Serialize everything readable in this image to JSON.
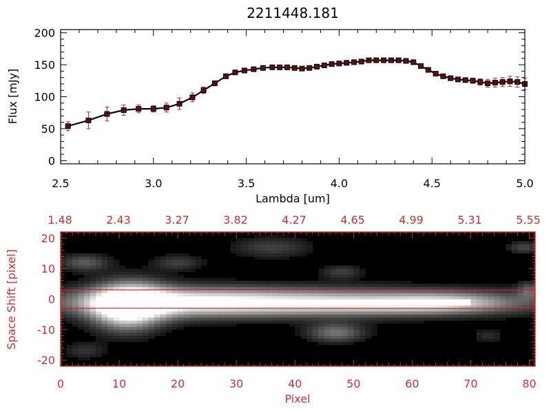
{
  "title": "2211448.181",
  "colors": {
    "spectrum_line": "#000000",
    "marker": "#5a1010",
    "error_bar": "#d02020",
    "bottom_axes": "#d03030",
    "image_background": "#000000"
  },
  "chart_data": [
    {
      "type": "line",
      "title": "2211448.181",
      "xlabel": "Lambda [um]",
      "ylabel": "Flux [mJy]",
      "xlim": [
        2.5,
        5.0
      ],
      "ylim": [
        -5,
        205
      ],
      "xticks": [
        "2.5",
        "3.0",
        "3.5",
        "4.0",
        "4.5",
        "5.0"
      ],
      "yticks": [
        "0",
        "50",
        "100",
        "150",
        "200"
      ],
      "grid": false,
      "series": [
        {
          "x": [
            2.54,
            2.65,
            2.75,
            2.84,
            2.92,
            3.0,
            3.07,
            3.14,
            3.21,
            3.27,
            3.33,
            3.39,
            3.44,
            3.49,
            3.54,
            3.59,
            3.64,
            3.68,
            3.72,
            3.76,
            3.8,
            3.84,
            3.88,
            3.92,
            3.96,
            4.0,
            4.04,
            4.08,
            4.12,
            4.16,
            4.2,
            4.24,
            4.28,
            4.32,
            4.36,
            4.4,
            4.44,
            4.48,
            4.52,
            4.56,
            4.6,
            4.64,
            4.68,
            4.72,
            4.76,
            4.8,
            4.84,
            4.88,
            4.92,
            4.96,
            5.0
          ],
          "y": [
            54,
            63,
            73,
            79,
            81,
            81,
            83,
            89,
            99,
            110,
            121,
            132,
            138,
            141,
            143,
            145,
            146,
            146,
            146,
            145,
            144,
            145,
            147,
            149,
            151,
            152,
            153,
            154,
            155,
            157,
            157,
            157,
            157,
            157,
            156,
            154,
            148,
            142,
            136,
            132,
            129,
            127,
            126,
            125,
            123,
            121,
            122,
            123,
            124,
            123,
            120
          ],
          "err": [
            7,
            13,
            11,
            8,
            6,
            5,
            7,
            9,
            7,
            5,
            4,
            3,
            3,
            2,
            2,
            2,
            2,
            2,
            2,
            2,
            2,
            2,
            2,
            2,
            2,
            2,
            2,
            2,
            2,
            2,
            2,
            2,
            2,
            2,
            2,
            2,
            2,
            2,
            2,
            3,
            3,
            3,
            3,
            4,
            5,
            6,
            7,
            7,
            8,
            8,
            9
          ]
        }
      ]
    },
    {
      "type": "heatmap",
      "xlabel": "Pixel",
      "ylabel": "Space Shift [pixel]",
      "xlim": [
        0,
        81
      ],
      "ylim": [
        -22,
        22
      ],
      "xticks": [
        "0",
        "10",
        "20",
        "30",
        "40",
        "50",
        "60",
        "70",
        "80"
      ],
      "yticks": [
        "-20",
        "-10",
        "0",
        "10",
        "20"
      ],
      "top_xticks": [
        "1.48",
        "2.43",
        "3.27",
        "3.82",
        "4.27",
        "4.65",
        "4.99",
        "5.31",
        "5.55"
      ],
      "extraction_band": [
        -3,
        3
      ],
      "blobs": [
        {
          "x": 12,
          "y": 0,
          "sx": 4.5,
          "sy": 5,
          "v": 0.7
        },
        {
          "x": 11,
          "y": -3,
          "sx": 4,
          "sy": 5,
          "v": 0.5
        },
        {
          "x": 40,
          "y": 0,
          "sx": 26,
          "sy": 3.2,
          "v": 0.8
        },
        {
          "x": 20,
          "y": 0,
          "sx": 12,
          "sy": 3.5,
          "v": 0.45
        },
        {
          "x": 66,
          "y": 0,
          "sx": 7,
          "sy": 2.2,
          "v": 0.35
        },
        {
          "x": 4,
          "y": 13,
          "sx": 3,
          "sy": 2,
          "v": 0.35
        },
        {
          "x": 20,
          "y": 13,
          "sx": 3,
          "sy": 1.8,
          "v": 0.25
        },
        {
          "x": 36,
          "y": 18,
          "sx": 5,
          "sy": 2.5,
          "v": 0.25
        },
        {
          "x": 48,
          "y": 10,
          "sx": 2.5,
          "sy": 1.6,
          "v": 0.25
        },
        {
          "x": 47,
          "y": -10,
          "sx": 3.5,
          "sy": 2.2,
          "v": 0.45
        },
        {
          "x": 73,
          "y": -11,
          "sx": 2,
          "sy": 1.5,
          "v": 0.18
        },
        {
          "x": 79,
          "y": 18,
          "sx": 2,
          "sy": 1.5,
          "v": 0.28
        },
        {
          "x": 80,
          "y": 4,
          "sx": 1.5,
          "sy": 2,
          "v": 0.3
        },
        {
          "x": 4,
          "y": -16,
          "sx": 2.5,
          "sy": 2,
          "v": 0.2
        },
        {
          "x": 55,
          "y": -1,
          "sx": 12,
          "sy": 2,
          "v": 0.25
        }
      ]
    }
  ]
}
